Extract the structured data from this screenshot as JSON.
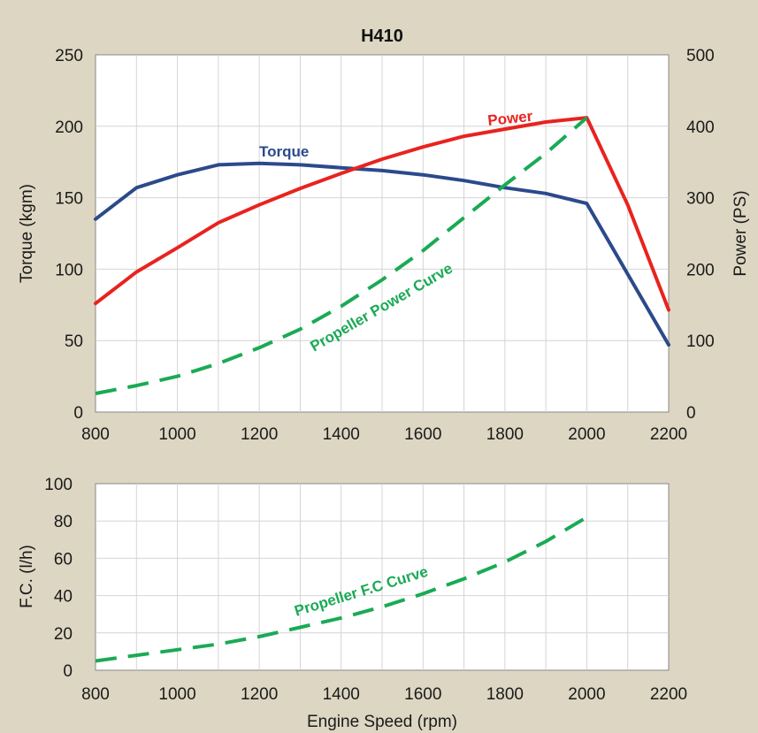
{
  "chart_data": [
    {
      "type": "line",
      "title": "H410",
      "xlabel": "",
      "ylabel_left": "Torque (kgm)",
      "ylabel_right": "Power (PS)",
      "xlim": [
        800,
        2200
      ],
      "xticks": [
        800,
        1000,
        1200,
        1400,
        1600,
        1800,
        2000,
        2200
      ],
      "ylim_left": [
        0,
        250
      ],
      "yticks_left": [
        0,
        50,
        100,
        150,
        200,
        250
      ],
      "ylim_right": [
        0,
        500
      ],
      "yticks_right": [
        0,
        100,
        200,
        300,
        400,
        500
      ],
      "grid": true,
      "series": [
        {
          "name": "Torque",
          "axis": "left",
          "color": "#2b4a8b",
          "style": "solid",
          "x": [
            800,
            900,
            1000,
            1100,
            1200,
            1300,
            1400,
            1500,
            1600,
            1700,
            1800,
            1900,
            2000,
            2200
          ],
          "y": [
            135,
            157,
            166,
            173,
            174,
            173,
            171,
            169,
            166,
            162,
            157,
            153,
            146,
            47
          ]
        },
        {
          "name": "Power",
          "axis": "right",
          "color": "#e8231f",
          "style": "solid",
          "x": [
            800,
            900,
            1000,
            1100,
            1200,
            1300,
            1400,
            1500,
            1600,
            1700,
            1800,
            1900,
            2000,
            2100,
            2200
          ],
          "y": [
            152,
            196,
            230,
            265,
            290,
            313,
            334,
            354,
            371,
            386,
            396,
            406,
            412,
            290,
            143
          ]
        },
        {
          "name": "Propeller Power Curve",
          "axis": "right",
          "color": "#1aaa55",
          "style": "dashed",
          "x": [
            800,
            900,
            1000,
            1100,
            1200,
            1300,
            1400,
            1500,
            1600,
            1700,
            1800,
            1900,
            2000
          ],
          "y": [
            26,
            37,
            50,
            68,
            90,
            116,
            148,
            185,
            226,
            272,
            318,
            362,
            412
          ]
        }
      ]
    },
    {
      "type": "line",
      "title": "",
      "xlabel": "Engine Speed (rpm)",
      "ylabel": "F.C. (l/h)",
      "xlim": [
        800,
        2200
      ],
      "xticks": [
        800,
        1000,
        1200,
        1400,
        1600,
        1800,
        2000,
        2200
      ],
      "ylim": [
        0,
        100
      ],
      "yticks": [
        0,
        20,
        40,
        60,
        80,
        100
      ],
      "grid": true,
      "series": [
        {
          "name": "Propeller F.C Curve",
          "color": "#1aaa55",
          "style": "dashed",
          "x": [
            800,
            900,
            1000,
            1100,
            1200,
            1300,
            1400,
            1500,
            1600,
            1700,
            1800,
            1900,
            2000
          ],
          "y": [
            5,
            8,
            11,
            14,
            18,
            23,
            28,
            34,
            41,
            49,
            58,
            69,
            82
          ]
        }
      ]
    }
  ],
  "annotations": {
    "torque": "Torque",
    "power": "Power",
    "propeller_power": "Propeller Power Curve",
    "propeller_fc": "Propeller F.C Curve"
  }
}
